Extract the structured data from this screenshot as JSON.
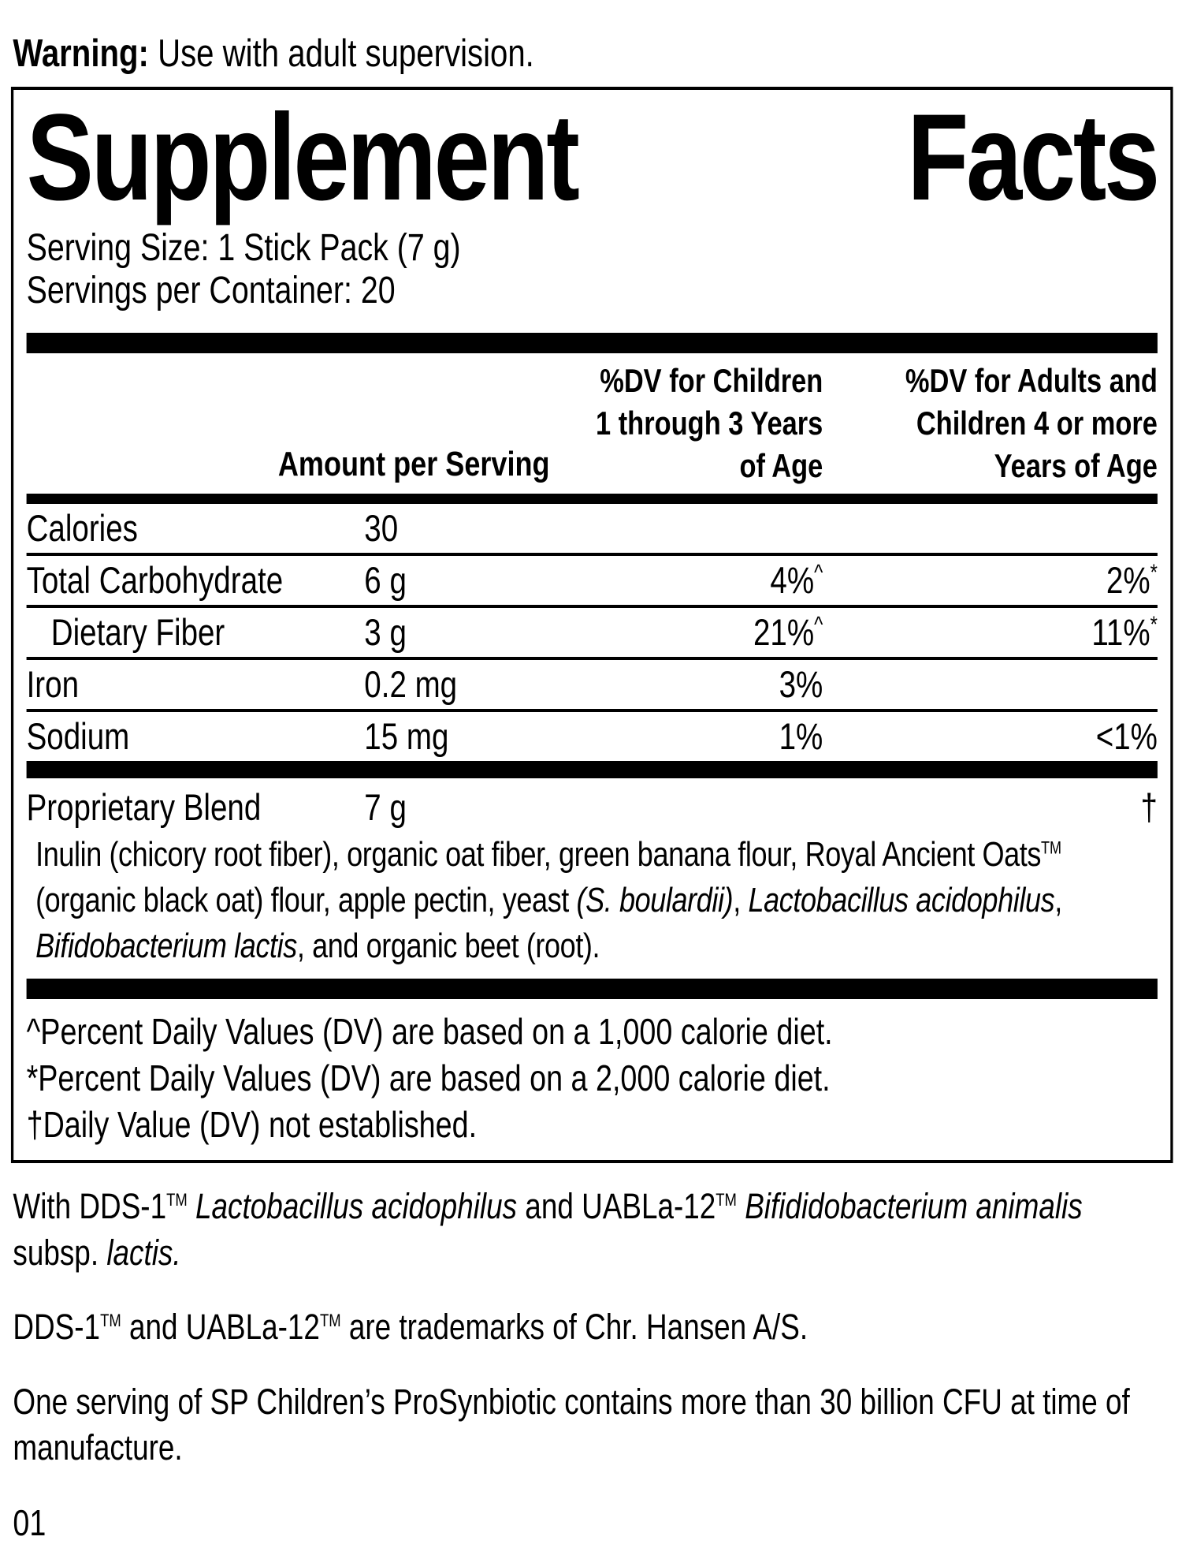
{
  "page": {
    "warning_bold": "Warning:",
    "warning_rest": " Use with adult supervision.",
    "page_number": "01"
  },
  "panel": {
    "title": {
      "word1": "Supplement",
      "word2": "Facts"
    },
    "serving_size": "Serving Size: 1 Stick Pack (7 g)",
    "servings_per_container": "Servings per Container: 20",
    "header": {
      "amount": "Amount per Serving",
      "dv_children_lines": [
        "%DV for Children",
        "1 through 3 Years",
        "of Age"
      ],
      "dv_adults_lines": [
        "%DV for Adults and",
        "Children 4 or more",
        "Years of Age"
      ]
    },
    "rows": [
      {
        "name": "Calories",
        "amount": "30",
        "dv_children": "",
        "dv_children_sup": "",
        "dv_adults": "",
        "dv_adults_sup": ""
      },
      {
        "name": "Total Carbohydrate",
        "amount": "6 g",
        "dv_children": "4%",
        "dv_children_sup": "^",
        "dv_adults": "2%",
        "dv_adults_sup": "*"
      },
      {
        "name": "Dietary Fiber",
        "amount": "3 g",
        "dv_children": "21%",
        "dv_children_sup": "^",
        "dv_adults": "11%",
        "dv_adults_sup": "*"
      },
      {
        "name": "Iron",
        "amount": "0.2 mg",
        "dv_children": "3%",
        "dv_children_sup": "",
        "dv_adults": "",
        "dv_adults_sup": ""
      },
      {
        "name": "Sodium",
        "amount": "15 mg",
        "dv_children": "1%",
        "dv_children_sup": "",
        "dv_adults": "<1%",
        "dv_adults_sup": ""
      }
    ],
    "blend": {
      "name": "Proprietary Blend",
      "amount": "7 g",
      "dv_mark": "†",
      "description": {
        "seg1": "Inulin (chicory root fiber), organic oat fiber, green banana flour, Royal Ancient Oats",
        "tm1": "TM",
        "seg2": " (organic black oat) flour, apple pectin, yeast ",
        "italic1": "(S. boulardii)",
        "seg3": ", ",
        "italic2": "Lactobacillus acidophilus",
        "seg4": ", ",
        "italic3": "Bifidobacterium lactis",
        "seg5": ", and organic beet (root)."
      }
    },
    "footnotes": [
      "^Percent Daily Values (DV) are based on a 1,000 calorie diet.",
      "*Percent Daily Values (DV) are based on a 2,000 calorie diet.",
      "†Daily Value (DV) not established."
    ]
  },
  "notes": {
    "note1": {
      "seg1": "With DDS-1",
      "tm1": "TM",
      "seg2": " ",
      "italic1": "Lactobacillus acidophilus",
      "seg3": " and UABLa-12",
      "tm2": "TM",
      "seg4": " ",
      "italic2": "Bifididobacterium animalis",
      "seg5": " subsp. ",
      "italic3": "lactis."
    },
    "note2": {
      "seg1": "DDS-1",
      "tm1": "TM",
      "seg2": " and UABLa-12",
      "tm2": "TM",
      "seg3": " are trademarks of Chr. Hansen A/S."
    },
    "note3": "One serving of SP Children’s ProSynbiotic contains more than 30 billion CFU at time of manufacture."
  }
}
